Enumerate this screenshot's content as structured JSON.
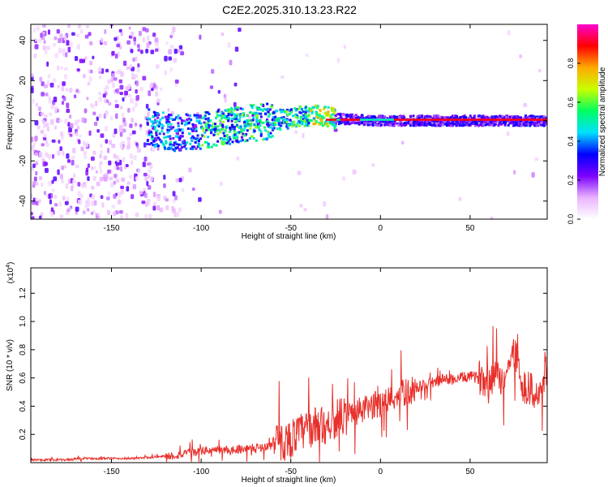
{
  "title": "C2E2.2025.310.13.23.R22",
  "chart_data": [
    {
      "type": "heatmap",
      "xlabel": "Height of straight line (km)",
      "ylabel": "Frequency (Hz)",
      "xlim": [
        -195,
        93
      ],
      "ylim": [
        -49,
        48
      ],
      "xticks": [
        -150,
        -100,
        -50,
        0,
        50
      ],
      "yticks": [
        -40,
        -20,
        0,
        20,
        40
      ],
      "colorbar": {
        "label": "Normalized spectral amplitude",
        "range": [
          0,
          1
        ],
        "ticks": [
          0.0,
          0.2,
          0.4,
          0.6,
          0.8
        ],
        "tick_labels": [
          "0.0",
          "0.2",
          "0.4",
          "0.6",
          "0.8"
        ],
        "colors": [
          "#ffffff",
          "#e9b3ff",
          "#7a00ff",
          "#0000ff",
          "#00e0ff",
          "#00ff60",
          "#c8ff00",
          "#ffaa00",
          "#ff0000",
          "#ff00d0"
        ]
      },
      "centerline": {
        "x": [
          -130,
          -115,
          -100,
          -80,
          -60,
          -45,
          -35,
          -25,
          0,
          93
        ],
        "y": [
          -3,
          -6,
          -5,
          -2,
          0,
          2,
          3,
          1,
          0,
          0
        ]
      }
    },
    {
      "type": "line",
      "xlabel": "Height of straight line (km)",
      "ylabel": "SNR (10 * v/v)",
      "y_multiplier": "(x10^4)",
      "xlim": [
        -195,
        93
      ],
      "ylim": [
        0,
        1.38
      ],
      "xticks": [
        -150,
        -100,
        -50,
        0,
        50
      ],
      "yticks": [
        0.2,
        0.4,
        0.6,
        0.8,
        1.0,
        1.2
      ],
      "ytick_labels": [
        "0.2",
        "0.4",
        "0.6",
        "0.8",
        "1.0",
        "1.2"
      ],
      "series": [
        {
          "color": "#e8302b",
          "x": [
            -195,
            -185,
            -175,
            -165,
            -155,
            -145,
            -135,
            -125,
            -115,
            -105,
            -95,
            -85,
            -75,
            -65,
            -55,
            -50,
            -45,
            -40,
            -35,
            -30,
            -25,
            -20,
            -15,
            -10,
            -5,
            0,
            5,
            10,
            15,
            20,
            25,
            30,
            35,
            40,
            45,
            50,
            55,
            60,
            65,
            70,
            72,
            75,
            78,
            80,
            85,
            88,
            90,
            93
          ],
          "y": [
            0.02,
            0.02,
            0.02,
            0.03,
            0.03,
            0.03,
            0.03,
            0.04,
            0.05,
            0.07,
            0.09,
            0.09,
            0.1,
            0.11,
            0.14,
            0.17,
            0.21,
            0.24,
            0.26,
            0.27,
            0.31,
            0.33,
            0.35,
            0.37,
            0.4,
            0.42,
            0.45,
            0.48,
            0.5,
            0.53,
            0.55,
            0.57,
            0.59,
            0.59,
            0.6,
            0.61,
            0.6,
            0.6,
            0.6,
            0.61,
            0.7,
            0.8,
            0.6,
            0.55,
            0.5,
            0.45,
            0.55,
            0.65
          ]
        }
      ]
    }
  ]
}
